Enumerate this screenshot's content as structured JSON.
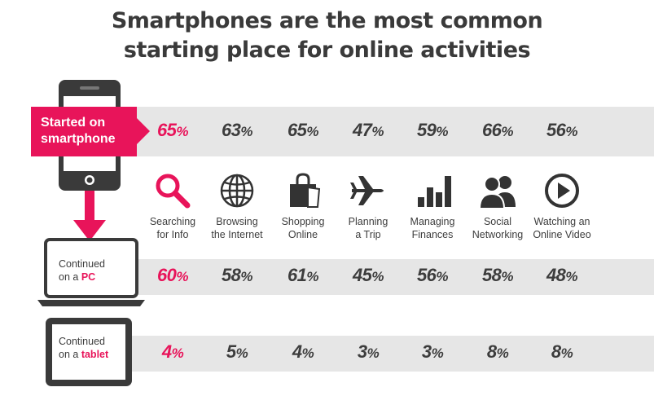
{
  "chart_data": {
    "type": "table",
    "title_lines": [
      "Smartphones are the most common",
      "starting place for online activities"
    ],
    "categories": [
      {
        "label_lines": [
          "Searching",
          "for Info"
        ],
        "icon": "magnifier-icon"
      },
      {
        "label_lines": [
          "Browsing",
          "the Internet"
        ],
        "icon": "globe-icon"
      },
      {
        "label_lines": [
          "Shopping",
          "Online"
        ],
        "icon": "shopping-bag-icon"
      },
      {
        "label_lines": [
          "Planning",
          "a Trip"
        ],
        "icon": "airplane-icon"
      },
      {
        "label_lines": [
          "Managing",
          "Finances"
        ],
        "icon": "bar-chart-icon"
      },
      {
        "label_lines": [
          "Social",
          "Networking"
        ],
        "icon": "people-icon"
      },
      {
        "label_lines": [
          "Watching an",
          "Online Video"
        ],
        "icon": "play-icon"
      }
    ],
    "series": [
      {
        "label_lines": [
          "Started on",
          "smartphone"
        ],
        "values": [
          65,
          63,
          65,
          47,
          59,
          66,
          56
        ]
      },
      {
        "label_prefix": "Continued",
        "label_second": "on a ",
        "label_accent": "PC",
        "values": [
          60,
          58,
          61,
          45,
          56,
          58,
          48
        ]
      },
      {
        "label_prefix": "Continued",
        "label_second": "on a ",
        "label_accent": "tablet",
        "values": [
          4,
          5,
          4,
          3,
          3,
          8,
          8
        ]
      }
    ],
    "unit": "%",
    "highlight_column": 0,
    "colors": {
      "accent": "#e8145a",
      "band": "#e6e6e6",
      "text": "#3d3d3d"
    }
  }
}
